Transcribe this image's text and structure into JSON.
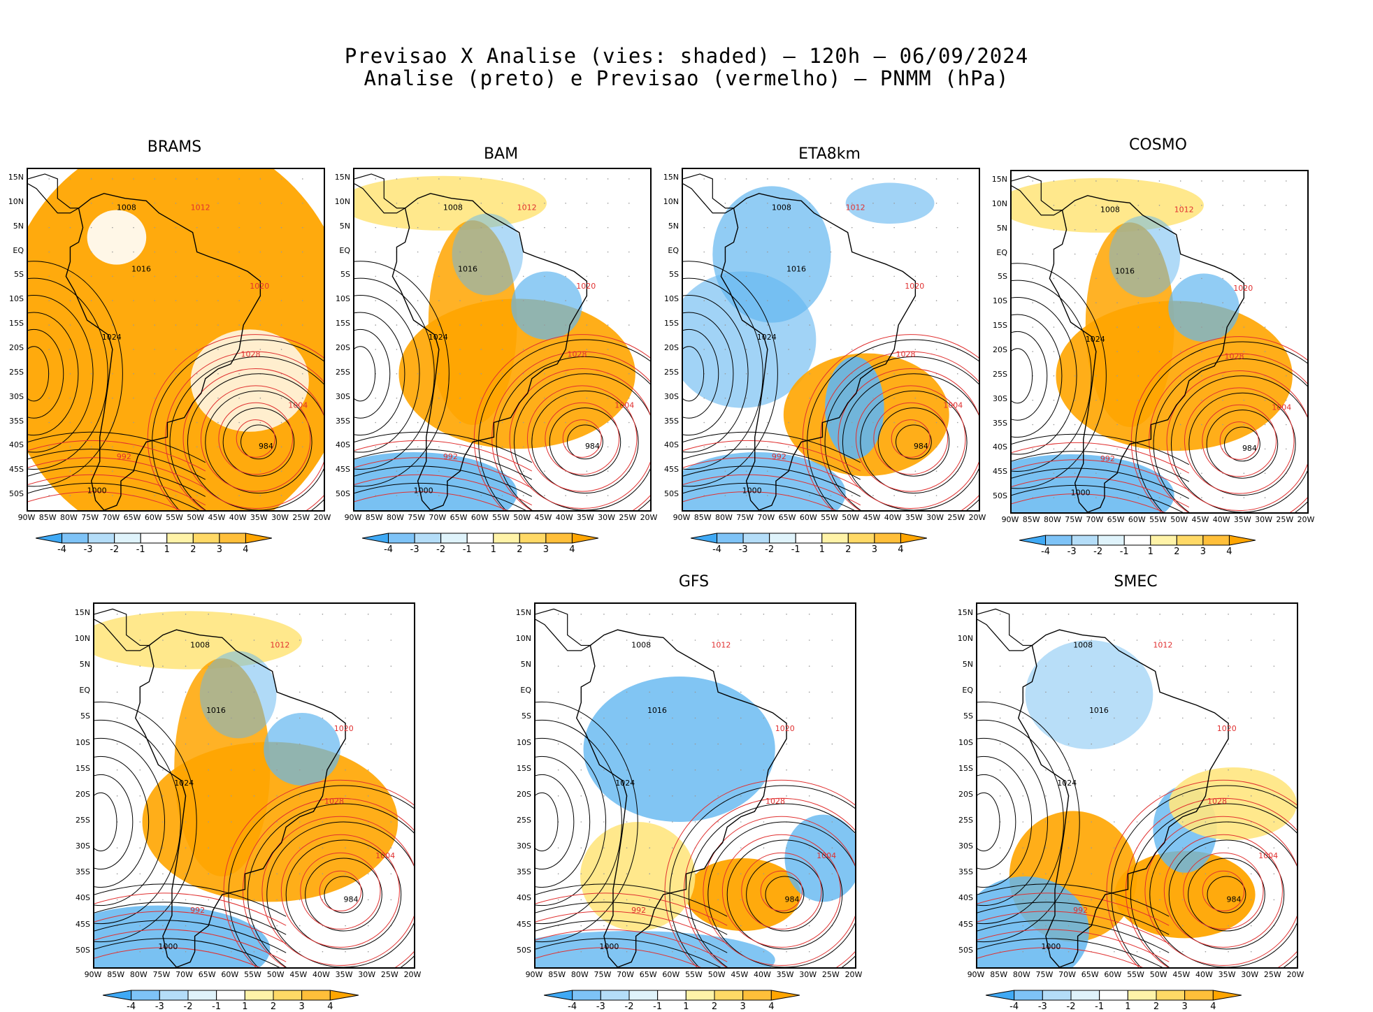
{
  "header": {
    "line1": "Previsao X Analise (vies: shaded) – 120h – 06/09/2024",
    "line2": "Analise (preto) e Previsao (vermelho) – PNMM (hPa)"
  },
  "panels": [
    {
      "name": "BRAMS",
      "label": "BRAMS",
      "theme": "warm"
    },
    {
      "name": "BAM",
      "label": "BAM",
      "theme": "mixed"
    },
    {
      "name": "ETA8km",
      "label": "ETA8km",
      "theme": "mixed-cool"
    },
    {
      "name": "COSMO",
      "label": "COSMO",
      "theme": "mixed"
    },
    {
      "name": "unnamed",
      "label": "",
      "theme": "mixed"
    },
    {
      "name": "GFS",
      "label": "GFS",
      "theme": "cool"
    },
    {
      "name": "SMEC",
      "label": "SMEC",
      "theme": "mixed-warm"
    }
  ],
  "lat_labels": [
    "15N",
    "10N",
    "5N",
    "EQ",
    "5S",
    "10S",
    "15S",
    "20S",
    "25S",
    "30S",
    "35S",
    "40S",
    "45S",
    "50S"
  ],
  "lon_labels": [
    "90W",
    "85W",
    "80W",
    "75W",
    "70W",
    "65W",
    "60W",
    "55W",
    "50W",
    "45W",
    "40W",
    "35W",
    "30W",
    "25W",
    "20W"
  ],
  "colorbar": {
    "labels": [
      "-4",
      "-3",
      "-2",
      "-1",
      "1",
      "2",
      "3",
      "4"
    ],
    "colors": [
      "#3fa9f5",
      "#7ec3f7",
      "#b4ddf8",
      "#dff3fb",
      "#ffffff",
      "#fff3a8",
      "#ffd966",
      "#ffbf3a",
      "#ffa500"
    ]
  },
  "colors": {
    "analysis": "#000000",
    "forecast": "#e03030",
    "warm": "#ffa500",
    "cool": "#62b6f0"
  },
  "contours": [
    "1008",
    "1012",
    "1016",
    "1020",
    "1024",
    "1028",
    "984",
    "992",
    "1000",
    "1004"
  ]
}
